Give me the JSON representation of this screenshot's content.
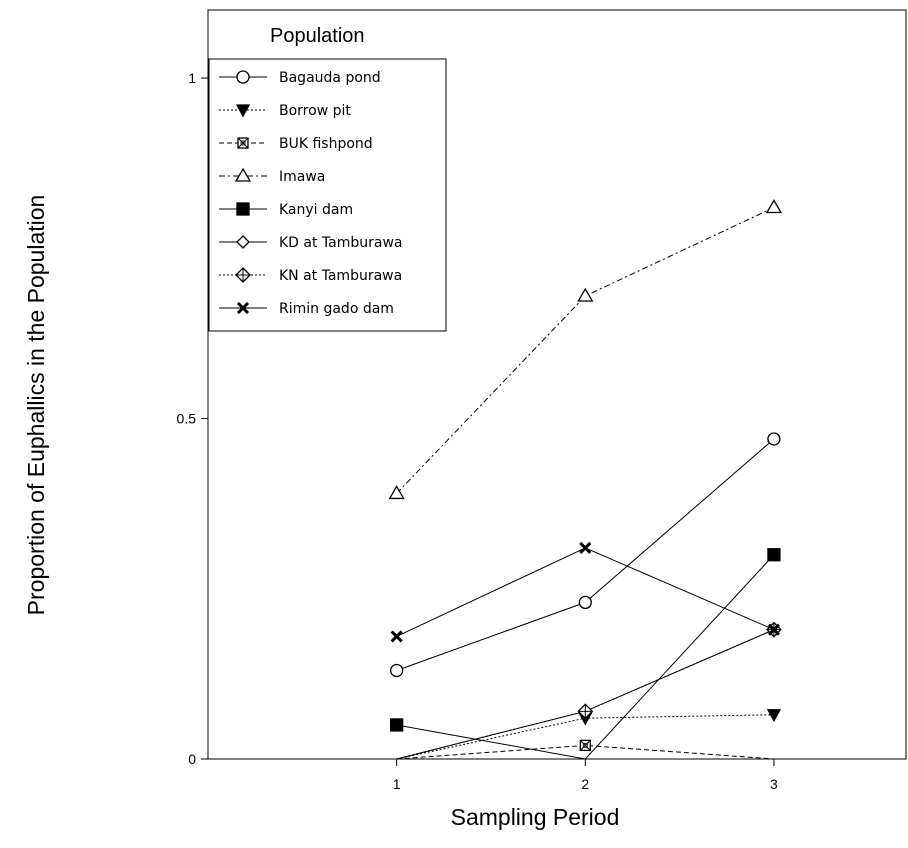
{
  "chart_data": {
    "type": "line",
    "title": "",
    "xlabel": "Sampling Period",
    "ylabel": "Proportion of Euphallics in the Population",
    "x": [
      1,
      2,
      3
    ],
    "x_tick_labels": [
      "1",
      "2",
      "3"
    ],
    "xlim": [
      0.0,
      3.7
    ],
    "y_ticks": [
      0,
      0.5,
      1
    ],
    "y_tick_labels": [
      "0",
      "0.5",
      "1"
    ],
    "ylim": [
      0,
      1.1
    ],
    "grid": false,
    "legend_title": "Population",
    "legend_position": "top-left",
    "series": [
      {
        "name": "Bagauda pond",
        "values": [
          0.13,
          0.23,
          0.47
        ],
        "marker": "open-circle",
        "dash": "solid",
        "color": "#000000"
      },
      {
        "name": "Borrow pit",
        "values": [
          0.0,
          0.06,
          0.065
        ],
        "marker": "filled-triangle-down",
        "dash": "dotted",
        "color": "#000000"
      },
      {
        "name": "BUK fishpond",
        "values": [
          0.0,
          0.02,
          0.0
        ],
        "marker": "crossed-square",
        "dash": "dashed",
        "color": "#000000"
      },
      {
        "name": "Imawa",
        "values": [
          0.39,
          0.68,
          0.81
        ],
        "marker": "open-triangle-up",
        "dash": "dashdot",
        "color": "#000000"
      },
      {
        "name": "Kanyi dam",
        "values": [
          0.05,
          0.0,
          0.3
        ],
        "marker": "filled-square",
        "dash": "solid",
        "color": "#000000"
      },
      {
        "name": "KD at Tamburawa",
        "values": [
          0.0,
          0.07,
          0.19
        ],
        "marker": "open-diamond",
        "dash": "solid",
        "color": "#000000"
      },
      {
        "name": "KN at Tamburawa",
        "values": [
          0.0,
          0.07,
          0.19
        ],
        "marker": "crossed-diamond",
        "dash": "dotted",
        "color": "#000000"
      },
      {
        "name": "Rimin gado dam",
        "values": [
          0.18,
          0.31,
          0.19
        ],
        "marker": "x-mark",
        "dash": "solid",
        "color": "#000000"
      }
    ]
  }
}
